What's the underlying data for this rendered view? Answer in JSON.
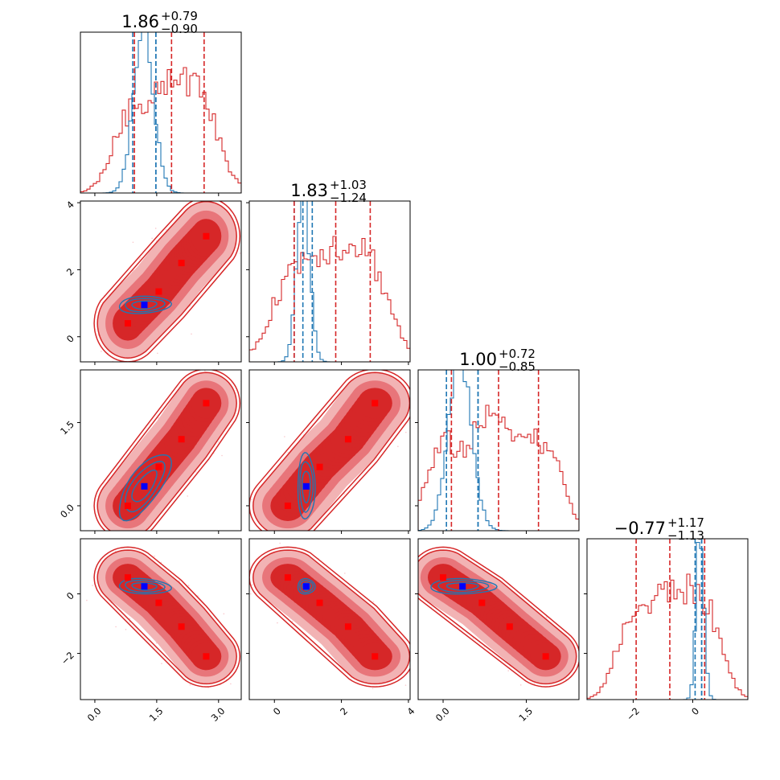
{
  "chart_data": {
    "type": "corner",
    "parameters": 4,
    "colors": {
      "red": "#d62728",
      "blue": "#1f77b4",
      "red_fill_outer": "#f2b3b4",
      "red_fill_mid": "#e8757a",
      "red_fill_inner": "#d62728",
      "marker_red": "#ff0000",
      "marker_blue": "#0000ff"
    },
    "titles": [
      {
        "value": "1.86",
        "plus": "+0.79",
        "minus": "−0.90"
      },
      {
        "value": "1.83",
        "plus": "+1.03",
        "minus": "−1.24"
      },
      {
        "value": "1.00",
        "plus": "+0.72",
        "minus": "−0.85"
      },
      {
        "value": "−0.77",
        "plus": "+1.17",
        "minus": "−1.13"
      }
    ],
    "ranges": [
      [
        -0.35,
        3.55
      ],
      [
        -0.75,
        4.05
      ],
      [
        -0.45,
        2.45
      ],
      [
        -3.55,
        1.85
      ]
    ],
    "ticks": [
      {
        "values": [
          0.0,
          1.5,
          3.0
        ],
        "labels": [
          "0.0",
          "1.5",
          "3.0"
        ]
      },
      {
        "values": [
          0,
          2,
          4
        ],
        "labels": [
          "0",
          "2",
          "4"
        ]
      },
      {
        "values": [
          0.0,
          1.5
        ],
        "labels": [
          "0.0",
          "1.5"
        ]
      },
      {
        "values": [
          -2,
          0
        ],
        "labels": [
          "−2",
          "0"
        ]
      }
    ],
    "quantiles_red": [
      [
        0.96,
        1.86,
        2.65
      ],
      [
        0.59,
        1.83,
        2.86
      ],
      [
        0.15,
        1.0,
        1.72
      ],
      [
        -1.9,
        -0.77,
        0.4
      ]
    ],
    "quantiles_blue": [
      [
        0.92,
        1.48,
        1.48
      ],
      [
        0.59,
        0.85,
        1.13
      ],
      [
        0.06,
        0.63,
        0.63
      ],
      [
        0.08,
        0.3,
        0.3
      ]
    ],
    "red_markers": [
      [
        0.8,
        0.4,
        0.0,
        0.55
      ],
      [
        1.55,
        1.35,
        0.7,
        -0.3
      ],
      [
        2.1,
        2.2,
        1.2,
        -1.1
      ],
      [
        2.7,
        3.0,
        1.85,
        -2.1
      ]
    ],
    "blue_marker": [
      1.2,
      0.95,
      0.35,
      0.25
    ],
    "red_corr": [
      [
        1,
        0.92,
        0.92,
        -0.92
      ],
      [
        0.92,
        1,
        0.92,
        -0.92
      ],
      [
        0.92,
        0.92,
        1,
        -0.92
      ],
      [
        -0.92,
        -0.92,
        -0.92,
        1
      ]
    ],
    "blue_cov": [
      [
        0.09,
        0.005,
        0.06,
        -0.006
      ],
      [
        0.005,
        0.015,
        0.0,
        0.0
      ],
      [
        0.06,
        0.0,
        0.08,
        0.0
      ],
      [
        -0.006,
        0.0,
        0.0,
        0.015
      ]
    ],
    "blue_hist": [
      {
        "mu": 1.18,
        "sigma": 0.24
      },
      {
        "mu": 0.86,
        "sigma": 0.19
      },
      {
        "mu": 0.3,
        "sigma": 0.21
      },
      {
        "mu": 0.25,
        "sigma": 0.13
      }
    ]
  }
}
